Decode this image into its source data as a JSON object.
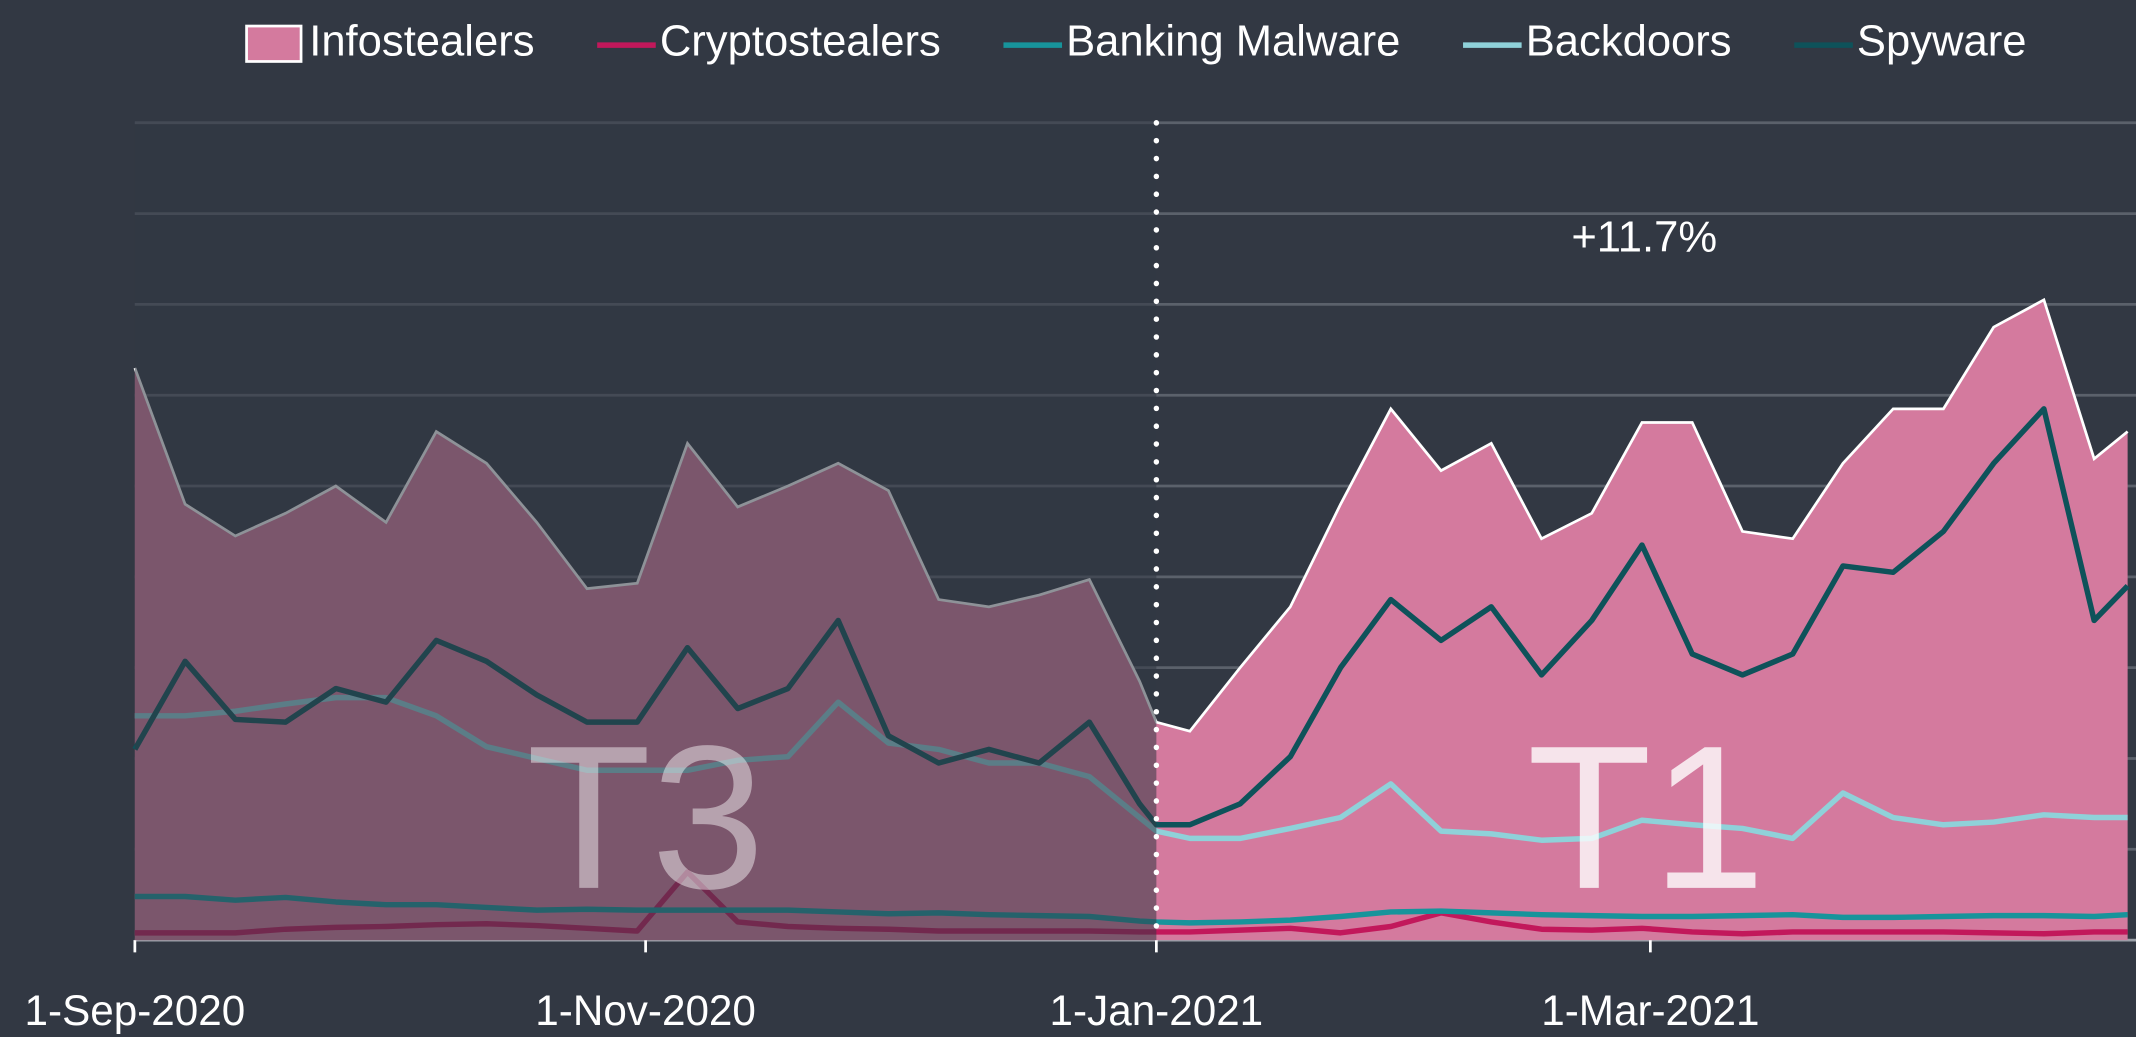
{
  "chart_data": {
    "type": "area_line",
    "annotation": "+11.7%",
    "periods": [
      {
        "label": "T3",
        "start": "2020-09-01",
        "end": "2021-01-01"
      },
      {
        "label": "T1",
        "start": "2021-01-01",
        "end": "2021-04-28"
      }
    ],
    "x": [
      "2020-09-01",
      "2020-09-07",
      "2020-09-13",
      "2020-09-19",
      "2020-09-25",
      "2020-10-01",
      "2020-10-07",
      "2020-10-13",
      "2020-10-19",
      "2020-10-25",
      "2020-10-31",
      "2020-11-06",
      "2020-11-12",
      "2020-11-18",
      "2020-11-24",
      "2020-11-30",
      "2020-12-06",
      "2020-12-12",
      "2020-12-18",
      "2020-12-24",
      "2020-12-30",
      "2021-01-01",
      "2021-01-05",
      "2021-01-11",
      "2021-01-17",
      "2021-01-23",
      "2021-01-29",
      "2021-02-04",
      "2021-02-10",
      "2021-02-16",
      "2021-02-22",
      "2021-02-28",
      "2021-03-06",
      "2021-03-12",
      "2021-03-18",
      "2021-03-24",
      "2021-03-30",
      "2021-04-05",
      "2021-04-11",
      "2021-04-17",
      "2021-04-23",
      "2021-04-27"
    ],
    "series": [
      {
        "name": "Infostealers",
        "kind": "area",
        "color": "#d47a9e",
        "values": [
          63,
          48,
          44.5,
          47,
          50,
          46,
          56,
          52.5,
          46,
          38.7,
          39.3,
          54.7,
          47.7,
          50,
          52.5,
          49.5,
          37.5,
          36.7,
          38,
          39.7,
          28.5,
          24,
          23,
          30,
          36.7,
          48,
          58.5,
          51.7,
          54.7,
          44.2,
          47,
          57,
          57,
          45,
          44.2,
          52.5,
          58.5,
          58.5,
          67.5,
          70.5,
          53,
          56
        ]
      },
      {
        "name": "Cryptostealers",
        "kind": "line",
        "color": "#c2185b",
        "values": [
          0.8,
          0.8,
          0.8,
          1.2,
          1.4,
          1.5,
          1.7,
          1.8,
          1.6,
          1.3,
          1.0,
          7.5,
          2.0,
          1.5,
          1.3,
          1.2,
          1.0,
          1.0,
          1.0,
          1.0,
          0.9,
          0.9,
          0.9,
          1.1,
          1.3,
          0.8,
          1.5,
          3.0,
          2.0,
          1.2,
          1.1,
          1.3,
          0.9,
          0.7,
          0.9,
          0.9,
          0.9,
          0.9,
          0.8,
          0.7,
          0.9,
          0.9
        ]
      },
      {
        "name": "Banking Malware",
        "kind": "line",
        "color": "#17949b",
        "values": [
          4.8,
          4.8,
          4.4,
          4.7,
          4.2,
          3.9,
          3.9,
          3.6,
          3.3,
          3.4,
          3.3,
          3.3,
          3.3,
          3.3,
          3.1,
          2.9,
          3.0,
          2.8,
          2.7,
          2.6,
          2.1,
          2.0,
          1.9,
          2.0,
          2.2,
          2.6,
          3.1,
          3.2,
          3.0,
          2.8,
          2.7,
          2.6,
          2.6,
          2.7,
          2.8,
          2.5,
          2.5,
          2.6,
          2.7,
          2.7,
          2.6,
          2.8
        ]
      },
      {
        "name": "Backdoors",
        "kind": "line",
        "color": "#8fd1d9",
        "values": [
          24.7,
          24.7,
          25.2,
          26,
          26.7,
          26.7,
          24.7,
          21.3,
          20,
          18.7,
          18.7,
          18.7,
          19.8,
          20.2,
          26.2,
          21.7,
          21,
          19.5,
          19.5,
          18,
          13.5,
          12,
          11.2,
          11.2,
          12.3,
          13.5,
          17.2,
          12,
          11.7,
          11,
          11.2,
          13.2,
          12.7,
          12.3,
          11.2,
          16.2,
          13.5,
          12.7,
          13,
          13.8,
          13.5,
          13.5
        ]
      },
      {
        "name": "Spyware",
        "kind": "line",
        "color": "#0e525a",
        "values": [
          21,
          30.7,
          24.3,
          24,
          27.7,
          26.2,
          33,
          30.7,
          27,
          24,
          24,
          32.2,
          25.5,
          27.7,
          35.2,
          22.5,
          19.5,
          21,
          19.5,
          24,
          15,
          12.7,
          12.7,
          15,
          20.2,
          30,
          37.5,
          33,
          36.7,
          29.2,
          35.2,
          43.5,
          31.5,
          29.2,
          31.5,
          41.2,
          40.5,
          45,
          52.5,
          58.5,
          35.2,
          39
        ]
      }
    ],
    "xlim": [
      "2020-09-01",
      "2021-04-28"
    ],
    "xticks": [
      {
        "value": "2020-09-01",
        "label": "1-Sep-2020"
      },
      {
        "value": "2020-11-01",
        "label": "1-Nov-2020"
      },
      {
        "value": "2021-01-01",
        "label": "1-Jan-2021"
      },
      {
        "value": "2021-03-01",
        "label": "1-Mar-2021"
      }
    ],
    "ylim": [
      0,
      90
    ],
    "yticks": [
      0,
      10,
      20,
      30,
      40,
      50,
      60,
      70,
      80,
      90
    ],
    "grid": true,
    "legend": "top"
  }
}
